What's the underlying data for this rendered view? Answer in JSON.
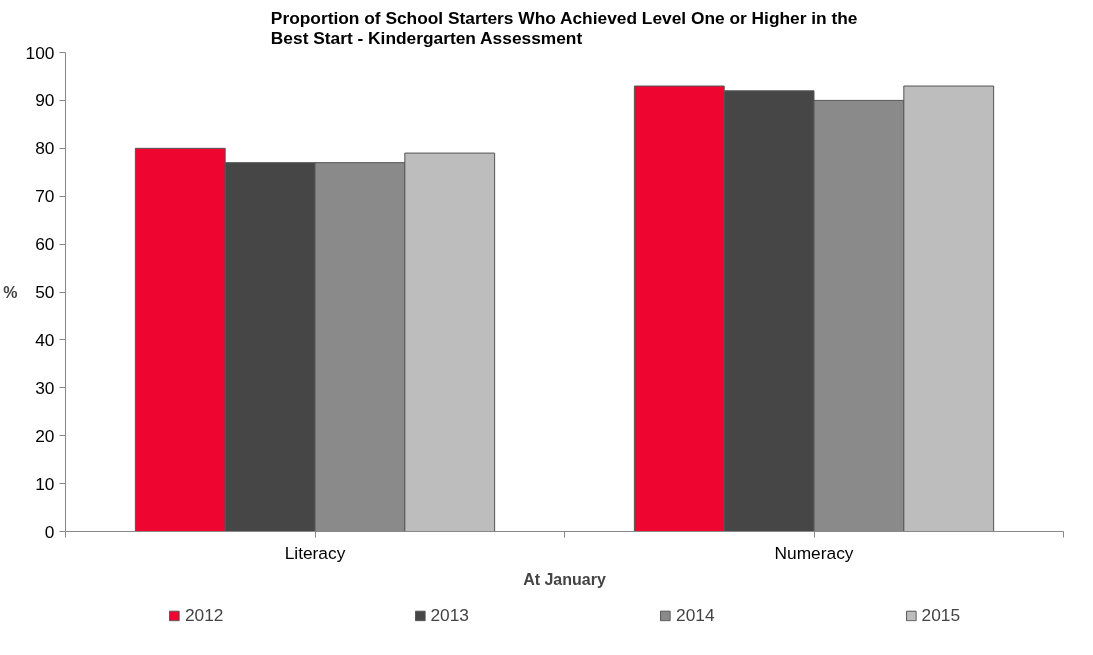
{
  "chart_data": {
    "type": "bar",
    "title": "Proportion of School Starters Who Achieved Level One or Higher in the\nBest Start - Kindergarten Assessment",
    "xlabel": "At January",
    "ylabel": "%",
    "categories": [
      "Literacy",
      "Numeracy"
    ],
    "series": [
      {
        "name": "2012",
        "color": "#ee0530",
        "values": [
          80,
          93
        ]
      },
      {
        "name": "2013",
        "color": "#464646",
        "values": [
          77,
          92
        ]
      },
      {
        "name": "2014",
        "color": "#8a8a8a",
        "values": [
          77,
          90
        ]
      },
      {
        "name": "2015",
        "color": "#bdbdbd",
        "values": [
          79,
          93
        ]
      }
    ],
    "ylim": [
      0,
      100
    ],
    "yticks": [
      0,
      10,
      20,
      30,
      40,
      50,
      60,
      70,
      80,
      90,
      100
    ],
    "grid": false,
    "legend": "bottom"
  }
}
